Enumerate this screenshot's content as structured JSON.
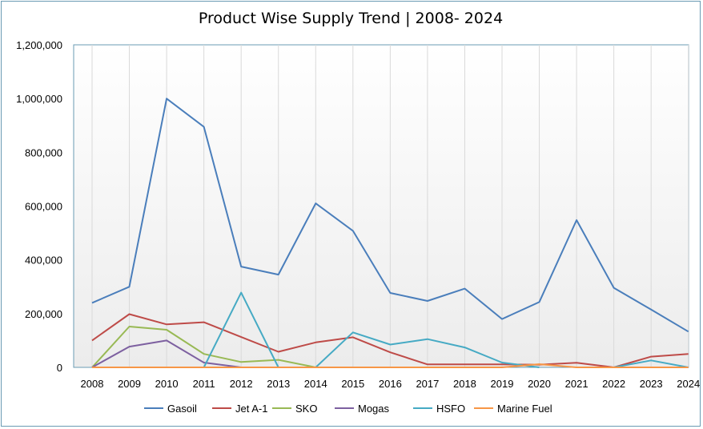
{
  "chart_data": {
    "type": "line",
    "title": "Product Wise Supply Trend | 2008- 2024",
    "x": [
      "2008",
      "2009",
      "2010",
      "2011",
      "2012",
      "2013",
      "2014",
      "2015",
      "2016",
      "2017",
      "2018",
      "2019",
      "2020",
      "2021",
      "2022",
      "2023",
      "2024"
    ],
    "y_ticks": [
      "0",
      "200,000",
      "400,000",
      "600,000",
      "800,000",
      "1,000,000",
      "1,200,000"
    ],
    "ylim": [
      0,
      1200000
    ],
    "grid": "vertical",
    "legend_position": "bottom",
    "series": [
      {
        "name": "Gasoil",
        "color": "#4a7ebb",
        "values": [
          240000,
          300000,
          1000000,
          895000,
          375000,
          345000,
          610000,
          508000,
          277000,
          247000,
          293000,
          180000,
          243000,
          548000,
          296000,
          215000,
          133000
        ]
      },
      {
        "name": "Jet A-1",
        "color": "#be4b48",
        "values": [
          100000,
          198000,
          160000,
          168000,
          113000,
          58000,
          93000,
          112000,
          56000,
          11000,
          11000,
          11000,
          10000,
          17000,
          0,
          40000,
          50000
        ]
      },
      {
        "name": "SKO",
        "color": "#98b954",
        "values": [
          0,
          152000,
          140000,
          50000,
          20000,
          28000,
          0,
          null,
          null,
          null,
          null,
          null,
          null,
          null,
          null,
          null,
          null
        ]
      },
      {
        "name": "Mogas",
        "color": "#7d60a0",
        "values": [
          0,
          77000,
          100000,
          18000,
          0,
          null,
          null,
          null,
          null,
          null,
          null,
          null,
          null,
          null,
          null,
          null,
          null
        ]
      },
      {
        "name": "HSFO",
        "color": "#46aac4",
        "values": [
          null,
          null,
          null,
          0,
          278000,
          0,
          0,
          130000,
          85000,
          105000,
          74000,
          18000,
          0,
          null,
          0,
          26000,
          0
        ]
      },
      {
        "name": "Marine Fuel",
        "color": "#f79646",
        "values": [
          0,
          0,
          0,
          0,
          0,
          0,
          0,
          0,
          0,
          0,
          0,
          0,
          12000,
          0,
          0,
          0,
          0
        ]
      }
    ]
  }
}
